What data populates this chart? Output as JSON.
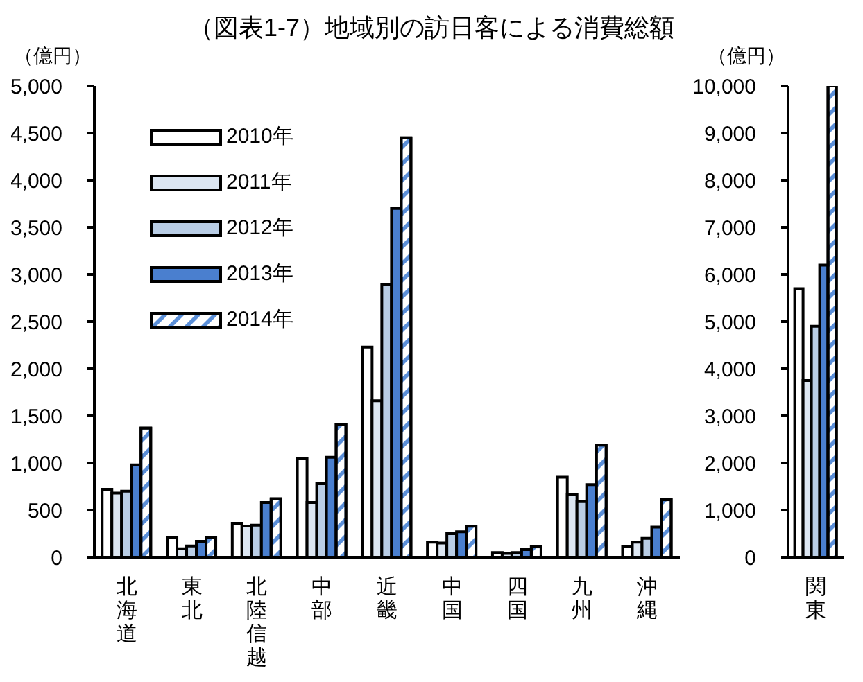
{
  "chart_data": [
    {
      "type": "bar",
      "title": "（図表1-7）地域別の訪日客による消費総額",
      "ylabel": "（億円）",
      "categories": [
        "北海道",
        "東北",
        "北陸信越",
        "中部",
        "近畿",
        "中国",
        "四国",
        "九州",
        "沖縄"
      ],
      "series": [
        {
          "name": "2010年",
          "color": "#ffffff",
          "values": [
            720,
            210,
            360,
            1050,
            2230,
            160,
            50,
            850,
            110
          ]
        },
        {
          "name": "2011年",
          "color": "#dce6f2",
          "values": [
            680,
            90,
            330,
            580,
            1660,
            150,
            40,
            670,
            160
          ]
        },
        {
          "name": "2012年",
          "color": "#b9cde5",
          "values": [
            700,
            120,
            340,
            780,
            2890,
            250,
            50,
            590,
            200
          ]
        },
        {
          "name": "2013年",
          "color": "#4a7fcf",
          "values": [
            980,
            170,
            580,
            1060,
            3700,
            270,
            80,
            770,
            320
          ]
        },
        {
          "name": "2014年",
          "color": "#5b8fd8",
          "values": [
            1370,
            210,
            620,
            1410,
            4450,
            330,
            110,
            1190,
            610
          ]
        }
      ],
      "ylim": [
        0,
        5000
      ],
      "yticks": [
        0,
        {
          "value": 500,
          "label": "500"
        },
        {
          "value": 1000,
          "label": "1,000"
        },
        {
          "value": 1500,
          "label": "1,500"
        },
        {
          "value": 2000,
          "label": "2,000"
        },
        {
          "value": 2500,
          "label": "2,500"
        },
        {
          "value": 3000,
          "label": "3,000"
        },
        {
          "value": 3500,
          "label": "3,500"
        },
        {
          "value": 4000,
          "label": "4,000"
        },
        {
          "value": 4500,
          "label": "4,500"
        },
        {
          "value": 5000,
          "label": "5,000"
        }
      ],
      "legend": "top left",
      "grid": false
    },
    {
      "type": "bar",
      "ylabel": "（億円）",
      "categories": [
        "関東"
      ],
      "series": [
        {
          "color": "#ffffff",
          "values": [
            5700
          ]
        },
        {
          "color": "#dce6f2",
          "values": [
            3750
          ]
        },
        {
          "color": "#b9cde5",
          "values": [
            4900
          ]
        },
        {
          "color": "#4a7fcf",
          "values": [
            6200
          ]
        },
        {
          "color": "#5b8fd8",
          "values": [
            10000
          ]
        }
      ],
      "ylim": [
        0,
        10000
      ],
      "yticks": [
        0,
        {
          "value": 1000,
          "label": "1,000"
        },
        {
          "value": 2000,
          "label": "2,000"
        },
        {
          "value": 3000,
          "label": "3,000"
        },
        {
          "value": 4000,
          "label": "4,000"
        },
        {
          "value": 5000,
          "label": "5,000"
        },
        {
          "value": 6000,
          "label": "6,000"
        },
        {
          "value": 7000,
          "label": "7,000"
        },
        {
          "value": 8000,
          "label": "8,000"
        },
        {
          "value": 9000,
          "label": "9,000"
        },
        {
          "value": 10000,
          "label": "10,000"
        }
      ],
      "grid": false
    }
  ]
}
